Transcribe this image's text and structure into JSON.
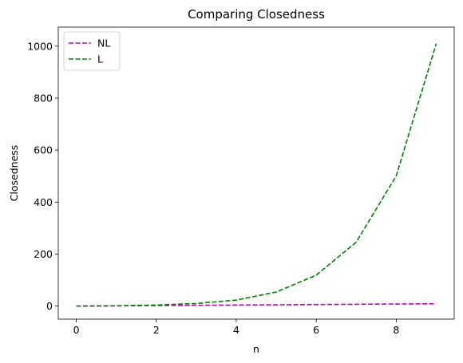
{
  "chart_data": {
    "type": "line",
    "title": "Comparing Closedness",
    "xlabel": "n",
    "ylabel": "Closedness",
    "xlim": [
      -0.45,
      9.45
    ],
    "ylim": [
      -50.15,
      1073.15
    ],
    "xticks": [
      0,
      2,
      4,
      6,
      8
    ],
    "yticks": [
      0,
      200,
      400,
      600,
      800,
      1000
    ],
    "grid": false,
    "legend_position": "upper-left",
    "x": [
      0,
      1,
      2,
      3,
      4,
      5,
      6,
      7,
      8,
      9
    ],
    "series": [
      {
        "name": "NL",
        "color": "#bf00bf",
        "style": "dashed",
        "values": [
          0,
          1,
          2,
          3,
          4,
          5,
          6,
          7,
          8,
          9
        ]
      },
      {
        "name": "L",
        "color": "#008000",
        "style": "dashed",
        "values": [
          0,
          1,
          4,
          10,
          23,
          54,
          119,
          246,
          501,
          1009
        ]
      }
    ]
  }
}
